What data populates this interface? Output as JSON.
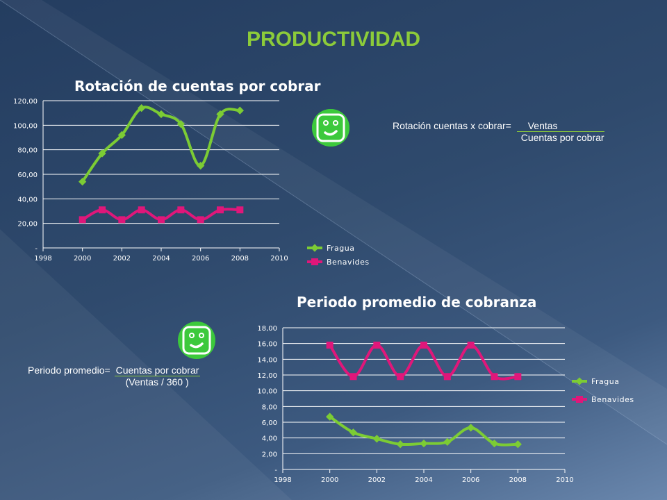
{
  "slide": {
    "title": "PRODUCTIVIDAD"
  },
  "formula1": {
    "lhs": "Rotación cuentas x cobrar=",
    "numerator": "Ventas",
    "denominator": "Cuentas por cobrar"
  },
  "formula2": {
    "lhs": "Periodo promedio=",
    "numerator": "Cuentas por cobrar",
    "denominator": "(Ventas / 360 )"
  },
  "colors": {
    "fragua": "#7ccc34",
    "benavides": "#e0177a",
    "accent_title": "#8ccb3a",
    "smiley": "#3cc93c"
  },
  "icons": [
    "smiley-icon",
    "smiley-icon"
  ],
  "chart_data": [
    {
      "type": "line",
      "title": "Rotación de cuentas por cobrar",
      "x": [
        2000,
        2001,
        2002,
        2003,
        2004,
        2005,
        2006,
        2007,
        2008
      ],
      "xlim": [
        1998,
        2010
      ],
      "x_ticks": [
        "1998",
        "2000",
        "2002",
        "2004",
        "2006",
        "2008",
        "2010"
      ],
      "ylim": [
        0,
        120
      ],
      "y_ticks": [
        "-",
        "20,00",
        "40,00",
        "60,00",
        "80,00",
        "100,00",
        "120,00"
      ],
      "series": [
        {
          "name": "Fragua",
          "values": [
            54,
            77,
            92,
            114,
            109,
            101,
            67,
            109,
            112
          ]
        },
        {
          "name": "Benavides",
          "values": [
            23,
            31,
            23,
            31,
            23,
            31,
            23,
            31,
            31
          ]
        }
      ],
      "grid": true,
      "legend": "right"
    },
    {
      "type": "line",
      "title": "Periodo promedio de cobranza",
      "x": [
        2000,
        2001,
        2002,
        2003,
        2004,
        2005,
        2006,
        2007,
        2008
      ],
      "xlim": [
        1998,
        2010
      ],
      "x_ticks": [
        "1998",
        "2000",
        "2002",
        "2004",
        "2006",
        "2008",
        "2010"
      ],
      "ylim": [
        0,
        18
      ],
      "y_ticks": [
        "-",
        "2,00",
        "4,00",
        "6,00",
        "8,00",
        "10,00",
        "12,00",
        "14,00",
        "16,00",
        "18,00"
      ],
      "series": [
        {
          "name": "Fragua",
          "values": [
            6.7,
            4.7,
            3.9,
            3.2,
            3.3,
            3.5,
            5.3,
            3.3,
            3.2
          ]
        },
        {
          "name": "Benavides",
          "values": [
            15.8,
            11.8,
            15.8,
            11.8,
            15.8,
            11.8,
            15.8,
            11.8,
            11.8
          ]
        }
      ],
      "grid": true,
      "legend": "right"
    }
  ]
}
